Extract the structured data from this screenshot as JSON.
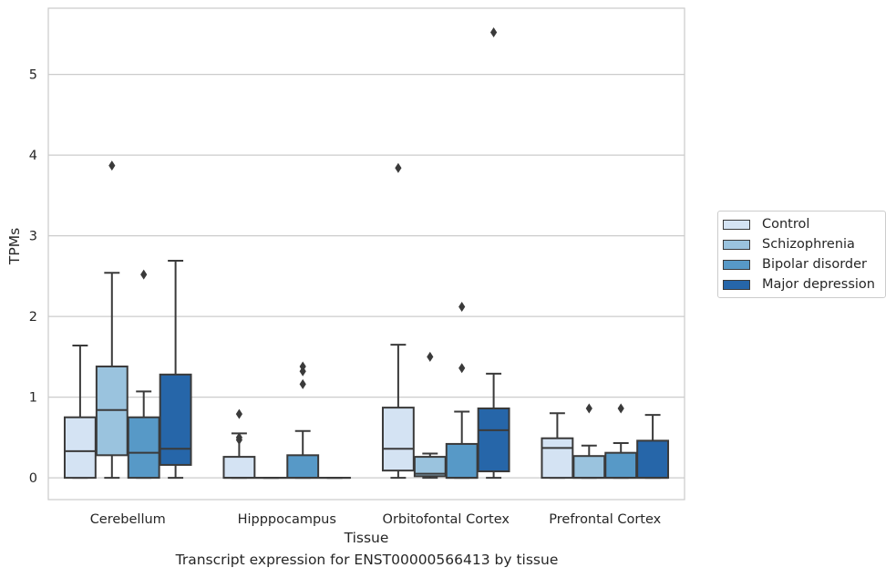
{
  "chart_data": {
    "type": "box",
    "title": "",
    "caption": "Transcript expression for ENST00000566413 by tissue",
    "xlabel": "Tissue",
    "ylabel": "TPMs",
    "ylim": [
      -0.27,
      5.82
    ],
    "yticks": [
      0,
      1,
      2,
      3,
      4,
      5
    ],
    "grid": "horizontal",
    "legend_position": "right",
    "categories": [
      "Cerebellum",
      "Hipppocampus",
      "Orbitofontal Cortex",
      "Prefrontal Cortex"
    ],
    "series": [
      {
        "name": "Control",
        "color": "#d4e3f3",
        "boxes": [
          {
            "whislo": 0,
            "q1": 0,
            "med": 0.33,
            "q3": 0.75,
            "whishi": 1.64,
            "fliers": []
          },
          {
            "whislo": 0,
            "q1": 0,
            "med": 0,
            "q3": 0.26,
            "whishi": 0.55,
            "fliers": [
              0.79,
              0.5,
              0.47
            ]
          },
          {
            "whislo": 0,
            "q1": 0.09,
            "med": 0.36,
            "q3": 0.87,
            "whishi": 1.65,
            "fliers": [
              3.84
            ]
          },
          {
            "whislo": 0,
            "q1": 0,
            "med": 0.37,
            "q3": 0.49,
            "whishi": 0.8,
            "fliers": []
          }
        ]
      },
      {
        "name": "Schizophrenia",
        "color": "#9ac3de",
        "boxes": [
          {
            "whislo": 0,
            "q1": 0.28,
            "med": 0.84,
            "q3": 1.38,
            "whishi": 2.54,
            "fliers": [
              3.87
            ]
          },
          {
            "whislo": 0,
            "q1": 0,
            "med": 0,
            "q3": 0,
            "whishi": 0,
            "fliers": []
          },
          {
            "whislo": 0,
            "q1": 0.02,
            "med": 0.05,
            "q3": 0.26,
            "whishi": 0.3,
            "fliers": [
              1.5
            ]
          },
          {
            "whislo": 0,
            "q1": 0,
            "med": 0,
            "q3": 0.27,
            "whishi": 0.4,
            "fliers": [
              0.86
            ]
          }
        ]
      },
      {
        "name": "Bipolar disorder",
        "color": "#5799c7",
        "boxes": [
          {
            "whislo": 0,
            "q1": 0,
            "med": 0.31,
            "q3": 0.75,
            "whishi": 1.07,
            "fliers": [
              2.52
            ]
          },
          {
            "whislo": 0,
            "q1": 0,
            "med": 0,
            "q3": 0.28,
            "whishi": 0.58,
            "fliers": [
              1.38,
              1.32,
              1.16
            ]
          },
          {
            "whislo": 0,
            "q1": 0,
            "med": 0,
            "q3": 0.42,
            "whishi": 0.82,
            "fliers": [
              2.12,
              1.36
            ]
          },
          {
            "whislo": 0,
            "q1": 0,
            "med": 0,
            "q3": 0.31,
            "whishi": 0.43,
            "fliers": [
              0.86
            ]
          }
        ]
      },
      {
        "name": "Major depression",
        "color": "#2666a9",
        "boxes": [
          {
            "whislo": 0,
            "q1": 0.16,
            "med": 0.36,
            "q3": 1.28,
            "whishi": 2.69,
            "fliers": []
          },
          {
            "whislo": 0,
            "q1": 0,
            "med": 0,
            "q3": 0,
            "whishi": 0,
            "fliers": []
          },
          {
            "whislo": 0,
            "q1": 0.08,
            "med": 0.59,
            "q3": 0.86,
            "whishi": 1.29,
            "fliers": [
              5.52
            ]
          },
          {
            "whislo": 0,
            "q1": 0,
            "med": 0,
            "q3": 0.46,
            "whishi": 0.78,
            "fliers": []
          }
        ]
      }
    ]
  }
}
